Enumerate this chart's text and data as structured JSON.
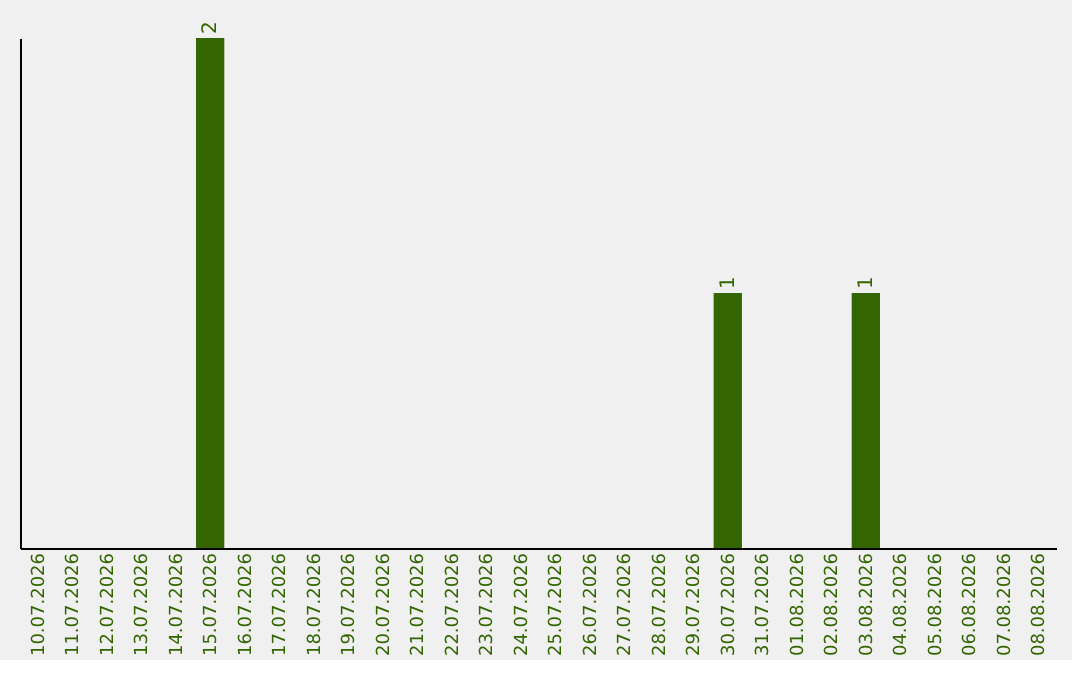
{
  "chart_data": {
    "type": "bar",
    "categories": [
      "10.07.2026",
      "11.07.2026",
      "12.07.2026",
      "13.07.2026",
      "14.07.2026",
      "15.07.2026",
      "16.07.2026",
      "17.07.2026",
      "18.07.2026",
      "19.07.2026",
      "20.07.2026",
      "21.07.2026",
      "22.07.2026",
      "23.07.2026",
      "24.07.2026",
      "25.07.2026",
      "26.07.2026",
      "27.07.2026",
      "28.07.2026",
      "29.07.2026",
      "30.07.2026",
      "31.07.2026",
      "01.08.2026",
      "02.08.2026",
      "03.08.2026",
      "04.08.2026",
      "05.08.2026",
      "06.08.2026",
      "07.08.2026",
      "08.08.2026"
    ],
    "values": [
      0,
      0,
      0,
      0,
      0,
      2,
      0,
      0,
      0,
      0,
      0,
      0,
      0,
      0,
      0,
      0,
      0,
      0,
      0,
      0,
      1,
      0,
      0,
      0,
      1,
      0,
      0,
      0,
      0,
      0
    ],
    "value_labels": [
      null,
      null,
      null,
      null,
      null,
      "2",
      null,
      null,
      null,
      null,
      null,
      null,
      null,
      null,
      null,
      null,
      null,
      null,
      null,
      null,
      "1",
      null,
      null,
      null,
      "1",
      null,
      null,
      null,
      null,
      null
    ],
    "color": "#336600",
    "grid": false
  }
}
